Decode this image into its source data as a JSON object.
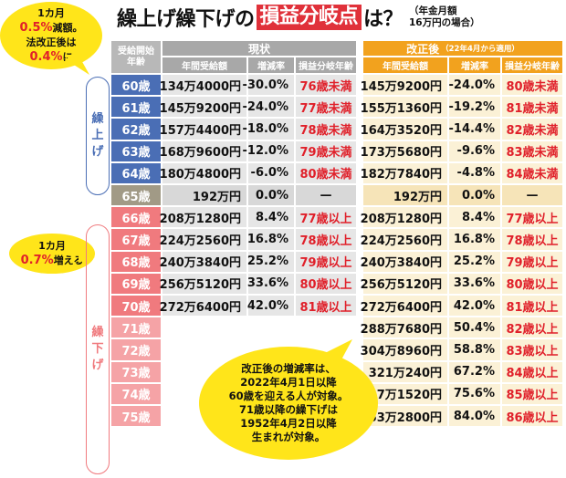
{
  "title": {
    "part1": "繰上げ繰下げの",
    "highlight": "損益分岐点",
    "part2": "は？"
  },
  "note": {
    "line1": "（年金月額",
    "line2": "16万円の場合）"
  },
  "bubble_top": {
    "line1": "1カ月",
    "line2_red": "0.5%",
    "line2_rest": "減額。",
    "line3": "法改正後は",
    "line4_red": "0.4%",
    "line4_rest": "に"
  },
  "bubble_mid": {
    "line1": "1カ月",
    "line2_red": "0.7%",
    "line2_rest": "増える"
  },
  "side_up": [
    "繰",
    "上",
    "げ"
  ],
  "side_down": [
    "繰",
    "下",
    "げ"
  ],
  "header": {
    "age_col": [
      "受給開始",
      "年齢"
    ],
    "current": "現状",
    "revised": "改正後",
    "revised_note": "（22年4月から適用）",
    "cols": [
      "年間受給額",
      "増減率",
      "損益分岐年齢"
    ]
  },
  "rows": [
    {
      "age": "60歳",
      "cur_amt": "134万4000円",
      "cur_rate": "-30.0%",
      "cur_be": "76歳未満",
      "new_amt": "145万9200円",
      "new_rate": "-24.0%",
      "new_be": "80歳未満"
    },
    {
      "age": "61歳",
      "cur_amt": "145万9200円",
      "cur_rate": "-24.0%",
      "cur_be": "77歳未満",
      "new_amt": "155万1360円",
      "new_rate": "-19.2%",
      "new_be": "81歳未満"
    },
    {
      "age": "62歳",
      "cur_amt": "157万4400円",
      "cur_rate": "-18.0%",
      "cur_be": "78歳未満",
      "new_amt": "164万3520円",
      "new_rate": "-14.4%",
      "new_be": "82歳未満"
    },
    {
      "age": "63歳",
      "cur_amt": "168万9600円",
      "cur_rate": "-12.0%",
      "cur_be": "79歳未満",
      "new_amt": "173万5680円",
      "new_rate": "-9.6%",
      "new_be": "83歳未満"
    },
    {
      "age": "64歳",
      "cur_amt": "180万4800円",
      "cur_rate": "-6.0%",
      "cur_be": "80歳未満",
      "new_amt": "182万7840円",
      "new_rate": "-4.8%",
      "new_be": "84歳未満"
    },
    {
      "age": "65歳",
      "cur_amt": "192万円",
      "cur_rate": "0.0%",
      "cur_be": "—",
      "new_amt": "192万円",
      "new_rate": "0.0%",
      "new_be": "—"
    },
    {
      "age": "66歳",
      "cur_amt": "208万1280円",
      "cur_rate": "8.4%",
      "cur_be": "77歳以上",
      "new_amt": "208万1280円",
      "new_rate": "8.4%",
      "new_be": "77歳以上"
    },
    {
      "age": "67歳",
      "cur_amt": "224万2560円",
      "cur_rate": "16.8%",
      "cur_be": "78歳以上",
      "new_amt": "224万2560円",
      "new_rate": "16.8%",
      "new_be": "78歳以上"
    },
    {
      "age": "68歳",
      "cur_amt": "240万3840円",
      "cur_rate": "25.2%",
      "cur_be": "79歳以上",
      "new_amt": "240万3840円",
      "new_rate": "25.2%",
      "new_be": "79歳以上"
    },
    {
      "age": "69歳",
      "cur_amt": "256万5120円",
      "cur_rate": "33.6%",
      "cur_be": "80歳以上",
      "new_amt": "256万5120円",
      "new_rate": "33.6%",
      "new_be": "80歳以上"
    },
    {
      "age": "70歳",
      "cur_amt": "272万6400円",
      "cur_rate": "42.0%",
      "cur_be": "81歳以上",
      "new_amt": "272万6400円",
      "new_rate": "42.0%",
      "new_be": "81歳以上"
    },
    {
      "age": "71歳",
      "cur_amt": "",
      "cur_rate": "",
      "cur_be": "",
      "new_amt": "288万7680円",
      "new_rate": "50.4%",
      "new_be": "82歳以上"
    },
    {
      "age": "72歳",
      "cur_amt": "",
      "cur_rate": "",
      "cur_be": "",
      "new_amt": "304万8960円",
      "new_rate": "58.8%",
      "new_be": "83歳以上"
    },
    {
      "age": "73歳",
      "cur_amt": "",
      "cur_rate": "",
      "cur_be": "",
      "new_amt": "321万240円",
      "new_rate": "67.2%",
      "new_be": "84歳以上"
    },
    {
      "age": "74歳",
      "cur_amt": "",
      "cur_rate": "",
      "cur_be": "",
      "new_amt": "337万1520円",
      "new_rate": "75.6%",
      "new_be": "85歳以上"
    },
    {
      "age": "75歳",
      "cur_amt": "",
      "cur_rate": "",
      "cur_be": "",
      "new_amt": "353万2800円",
      "new_rate": "84.0%",
      "new_be": "86歳以上"
    }
  ],
  "callout": [
    "改正後の増減率は、",
    "2022年4月1日以降",
    "60歳を迎える人が対象。",
    "71歳以降の繰下げは",
    "1952年4月2日以降",
    "生まれが対象。"
  ],
  "colors": {
    "accent_red": "#e0202a",
    "title_highlight": "#e0313a",
    "bubble_yellow": "#ffe51a",
    "age_blue": "#4a6eb5",
    "age_gray": "#a19a86",
    "age_pink": "#f07a7e",
    "age_pink_light": "#f5a3a6",
    "revised_orange": "#f2a21e",
    "cell_gray": "#e6e6e6",
    "cell_cream": "#fbf1d6"
  }
}
